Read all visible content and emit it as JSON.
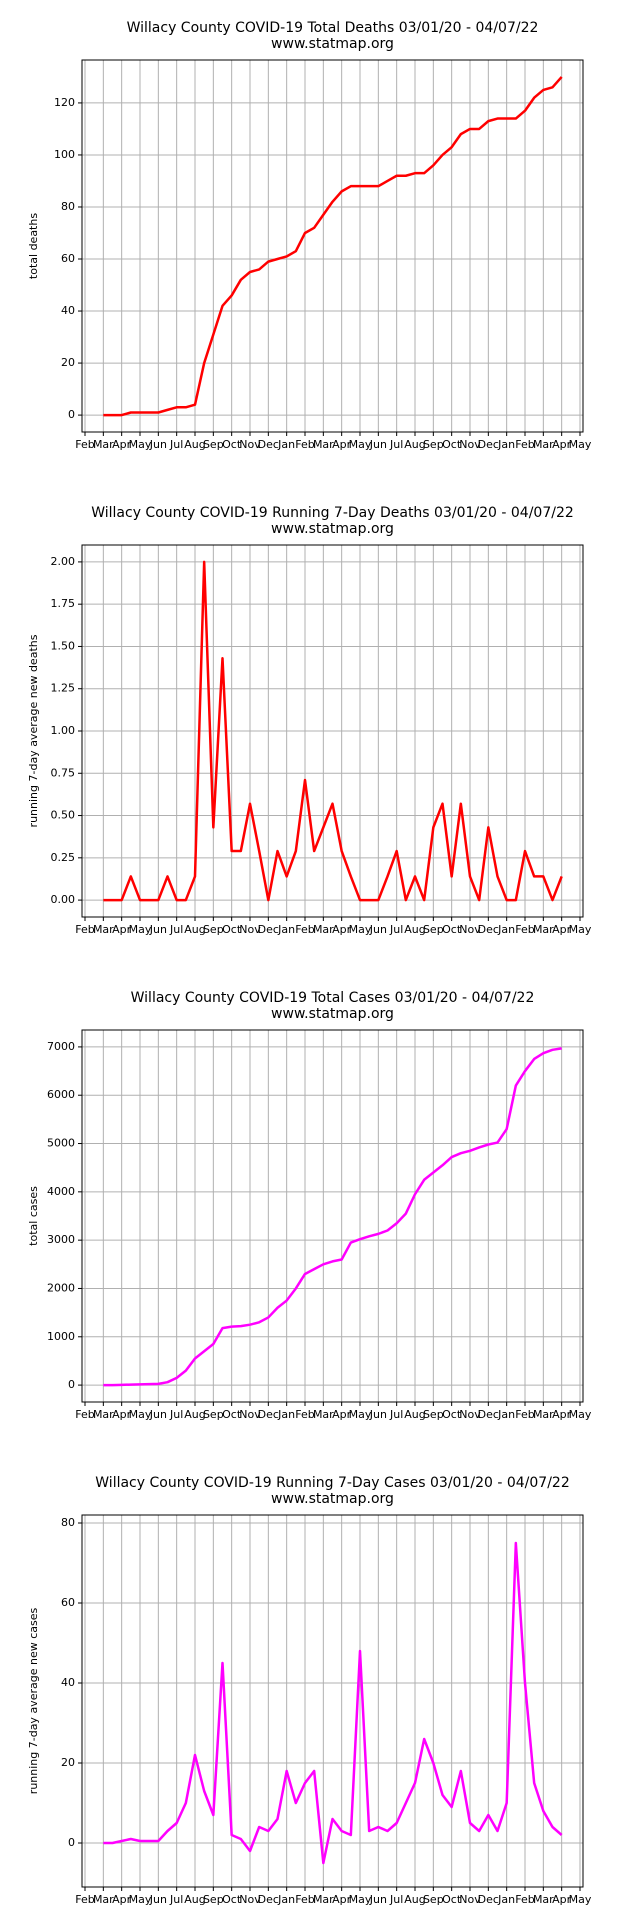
{
  "chart_data": [
    {
      "type": "line",
      "title": "Willacy County COVID-19 Total Deaths 03/01/20 - 04/07/22",
      "subtitle": "www.statmap.org",
      "y_label": "total deaths",
      "color": "#ff0000",
      "grid": true,
      "categories": [
        "Feb",
        null,
        "Mar",
        null,
        "Apr",
        null,
        "May",
        null,
        "Jun",
        null,
        "Jul",
        null,
        "Aug",
        null,
        "Sep",
        null,
        "Oct",
        null,
        "Nov",
        null,
        "Dec",
        null,
        "Jan",
        null,
        "Feb",
        null,
        "Mar",
        null,
        "Apr",
        null,
        "May",
        null,
        "Jun",
        null,
        "Jul",
        null,
        "Aug",
        null,
        "Sep",
        null,
        "Oct",
        null,
        "Nov",
        null,
        "Dec",
        null,
        "Jan",
        null,
        "Feb",
        null,
        "Mar",
        null,
        "Apr",
        null,
        "May"
      ],
      "values": [
        null,
        null,
        0,
        0,
        0,
        1,
        1,
        1,
        1,
        2,
        3,
        3,
        4,
        20,
        31,
        42,
        46,
        52,
        55,
        56,
        59,
        60,
        61,
        63,
        70,
        72,
        77,
        82,
        86,
        88,
        88,
        88,
        88,
        90,
        92,
        92,
        93,
        93,
        96,
        100,
        103,
        108,
        110,
        110,
        113,
        114,
        114,
        114,
        117,
        122,
        125,
        126,
        130,
        null,
        null
      ],
      "ylim": [
        -6.5,
        136.5
      ],
      "yticks": [
        0,
        20,
        40,
        60,
        80,
        100,
        120
      ]
    },
    {
      "type": "line",
      "title": "Willacy County COVID-19 Running 7-Day Deaths 03/01/20 - 04/07/22",
      "subtitle": "www.statmap.org",
      "y_label": "running 7-day average new deaths",
      "color": "#ff0000",
      "grid": true,
      "categories": [
        "Feb",
        null,
        "Mar",
        null,
        "Apr",
        null,
        "May",
        null,
        "Jun",
        null,
        "Jul",
        null,
        "Aug",
        null,
        "Sep",
        null,
        "Oct",
        null,
        "Nov",
        null,
        "Dec",
        null,
        "Jan",
        null,
        "Feb",
        null,
        "Mar",
        null,
        "Apr",
        null,
        "May",
        null,
        "Jun",
        null,
        "Jul",
        null,
        "Aug",
        null,
        "Sep",
        null,
        "Oct",
        null,
        "Nov",
        null,
        "Dec",
        null,
        "Jan",
        null,
        "Feb",
        null,
        "Mar",
        null,
        "Apr",
        null,
        "May"
      ],
      "values": [
        null,
        null,
        0,
        0,
        0,
        0.14,
        0,
        0,
        0,
        0.14,
        0,
        0,
        0.14,
        2.0,
        0.43,
        1.43,
        0.29,
        0.29,
        0.57,
        0.29,
        0,
        0.29,
        0.14,
        0.29,
        0.71,
        0.29,
        0.43,
        0.57,
        0.29,
        0.14,
        0,
        0,
        0,
        0.14,
        0.29,
        0,
        0.14,
        0,
        0.43,
        0.57,
        0.14,
        0.57,
        0.14,
        0,
        0.43,
        0.14,
        0,
        0,
        0.29,
        0.14,
        0.14,
        0,
        0.14,
        null,
        null
      ],
      "ylim": [
        -0.1,
        2.1
      ],
      "yticks": [
        {
          "value": 0,
          "label": "0.00"
        },
        {
          "value": 0.25,
          "label": "0.25"
        },
        {
          "value": 0.5,
          "label": "0.50"
        },
        {
          "value": 0.75,
          "label": "0.75"
        },
        {
          "value": 1,
          "label": "1.00"
        },
        {
          "value": 1.25,
          "label": "1.25"
        },
        {
          "value": 1.5,
          "label": "1.50"
        },
        {
          "value": 1.75,
          "label": "1.75"
        },
        {
          "value": 2,
          "label": "2.00"
        }
      ]
    },
    {
      "type": "line",
      "title": "Willacy County COVID-19 Total Cases 03/01/20 - 04/07/22",
      "subtitle": "www.statmap.org",
      "y_label": "total cases",
      "color": "#ff00ff",
      "grid": true,
      "categories": [
        "Feb",
        null,
        "Mar",
        null,
        "Apr",
        null,
        "May",
        null,
        "Jun",
        null,
        "Jul",
        null,
        "Aug",
        null,
        "Sep",
        null,
        "Oct",
        null,
        "Nov",
        null,
        "Dec",
        null,
        "Jan",
        null,
        "Feb",
        null,
        "Mar",
        null,
        "Apr",
        null,
        "May",
        null,
        "Jun",
        null,
        "Jul",
        null,
        "Aug",
        null,
        "Sep",
        null,
        "Oct",
        null,
        "Nov",
        null,
        "Dec",
        null,
        "Jan",
        null,
        "Feb",
        null,
        "Mar",
        null,
        "Apr",
        null,
        "May"
      ],
      "values": [
        null,
        null,
        0,
        0,
        5,
        10,
        15,
        20,
        25,
        60,
        150,
        300,
        550,
        700,
        850,
        1180,
        1210,
        1220,
        1250,
        1300,
        1400,
        1600,
        1750,
        2000,
        2300,
        2400,
        2500,
        2560,
        2600,
        2950,
        3020,
        3080,
        3130,
        3200,
        3350,
        3550,
        3950,
        4250,
        4400,
        4550,
        4720,
        4800,
        4850,
        4920,
        4980,
        5020,
        5300,
        6200,
        6500,
        6750,
        6870,
        6940,
        6970,
        null,
        null
      ],
      "ylim": [
        -350,
        7350
      ],
      "yticks": [
        0,
        1000,
        2000,
        3000,
        4000,
        5000,
        6000,
        7000
      ]
    },
    {
      "type": "line",
      "title": "Willacy County COVID-19 Running 7-Day Cases 03/01/20 - 04/07/22",
      "subtitle": "www.statmap.org",
      "y_label": "running 7-day average new cases",
      "color": "#ff00ff",
      "grid": true,
      "categories": [
        "Feb",
        null,
        "Mar",
        null,
        "Apr",
        null,
        "May",
        null,
        "Jun",
        null,
        "Jul",
        null,
        "Aug",
        null,
        "Sep",
        null,
        "Oct",
        null,
        "Nov",
        null,
        "Dec",
        null,
        "Jan",
        null,
        "Feb",
        null,
        "Mar",
        null,
        "Apr",
        null,
        "May",
        null,
        "Jun",
        null,
        "Jul",
        null,
        "Aug",
        null,
        "Sep",
        null,
        "Oct",
        null,
        "Nov",
        null,
        "Dec",
        null,
        "Jan",
        null,
        "Feb",
        null,
        "Mar",
        null,
        "Apr",
        null,
        "May"
      ],
      "values": [
        null,
        null,
        0,
        0,
        0.5,
        1,
        0.5,
        0.5,
        0.5,
        3,
        5,
        10,
        22,
        13,
        7,
        45,
        2,
        1,
        -2,
        4,
        3,
        6,
        18,
        10,
        15,
        18,
        -5,
        6,
        3,
        2,
        48,
        3,
        4,
        3,
        5,
        10,
        15,
        26,
        20,
        12,
        9,
        18,
        5,
        3,
        7,
        3,
        10,
        75,
        40,
        15,
        8,
        4,
        2,
        null,
        null
      ],
      "ylim": [
        -11,
        82
      ],
      "yticks": [
        0,
        20,
        40,
        60,
        80
      ]
    }
  ]
}
